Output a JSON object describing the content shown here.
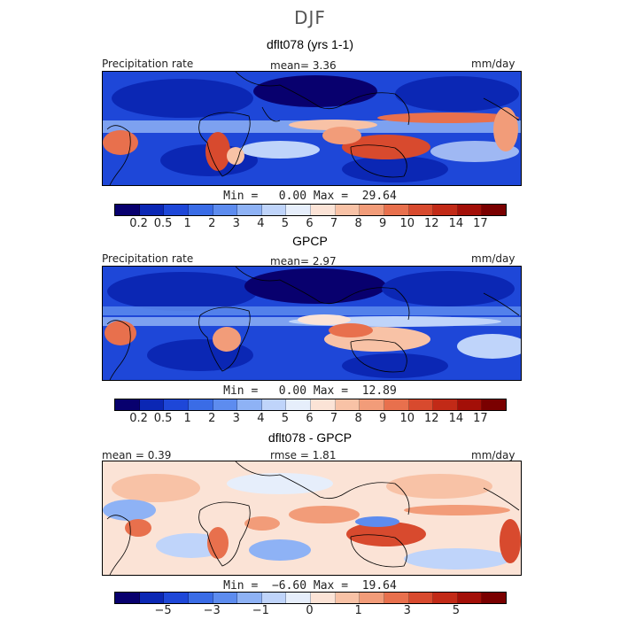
{
  "figure": {
    "season": "DJF",
    "colorbar_colors": [
      "#08006e",
      "#0b27b4",
      "#1e47d8",
      "#3a6ce6",
      "#5d8cef",
      "#8eb2f5",
      "#bfd4fa",
      "#e6eefb",
      "#fbe3d6",
      "#f8c2a6",
      "#f29c79",
      "#e8704d",
      "#d84a2e",
      "#c22a17",
      "#a30f08",
      "#7a0000"
    ]
  },
  "panels": [
    {
      "title": "dflt078 (yrs 1-1)",
      "left_label": "Precipitation rate",
      "center_label": "mean=   3.36",
      "right_label": "mm/day",
      "minmax": "Min =   0.00 Max =  29.64",
      "ticks": [
        "0.2",
        "0.5",
        "1",
        "2",
        "3",
        "4",
        "5",
        "6",
        "7",
        "8",
        "9",
        "10",
        "12",
        "14",
        "17"
      ]
    },
    {
      "title": "GPCP",
      "left_label": "Precipitation rate",
      "center_label": "mean=   2.97",
      "right_label": "mm/day",
      "minmax": "Min =   0.00 Max =  12.89",
      "ticks": [
        "0.2",
        "0.5",
        "1",
        "2",
        "3",
        "4",
        "5",
        "6",
        "7",
        "8",
        "9",
        "10",
        "12",
        "14",
        "17"
      ]
    },
    {
      "title": "dflt078 - GPCP",
      "left_label": "mean =   0.39",
      "center_label": "rmse =   1.81",
      "right_label": "mm/day",
      "minmax": "Min =  −6.60 Max =  19.64",
      "ticks": [
        "−5",
        "−3",
        "−1",
        "0",
        "1",
        "3",
        "5"
      ]
    }
  ]
}
